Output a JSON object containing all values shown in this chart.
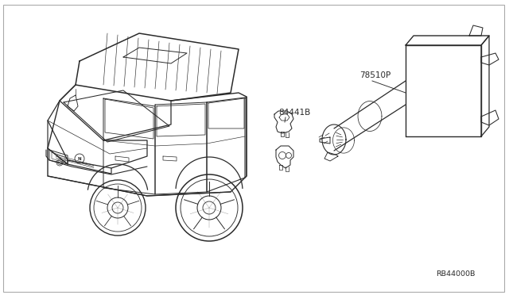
{
  "background_color": "#ffffff",
  "line_color": "#2a2a2a",
  "label_color": "#2a2a2a",
  "label_84441B": "84441B",
  "label_78510P": "78510P",
  "label_RB44000B": "RB44000B",
  "figsize": [
    6.4,
    3.72
  ],
  "dpi": 100,
  "border_color": "#aaaaaa"
}
